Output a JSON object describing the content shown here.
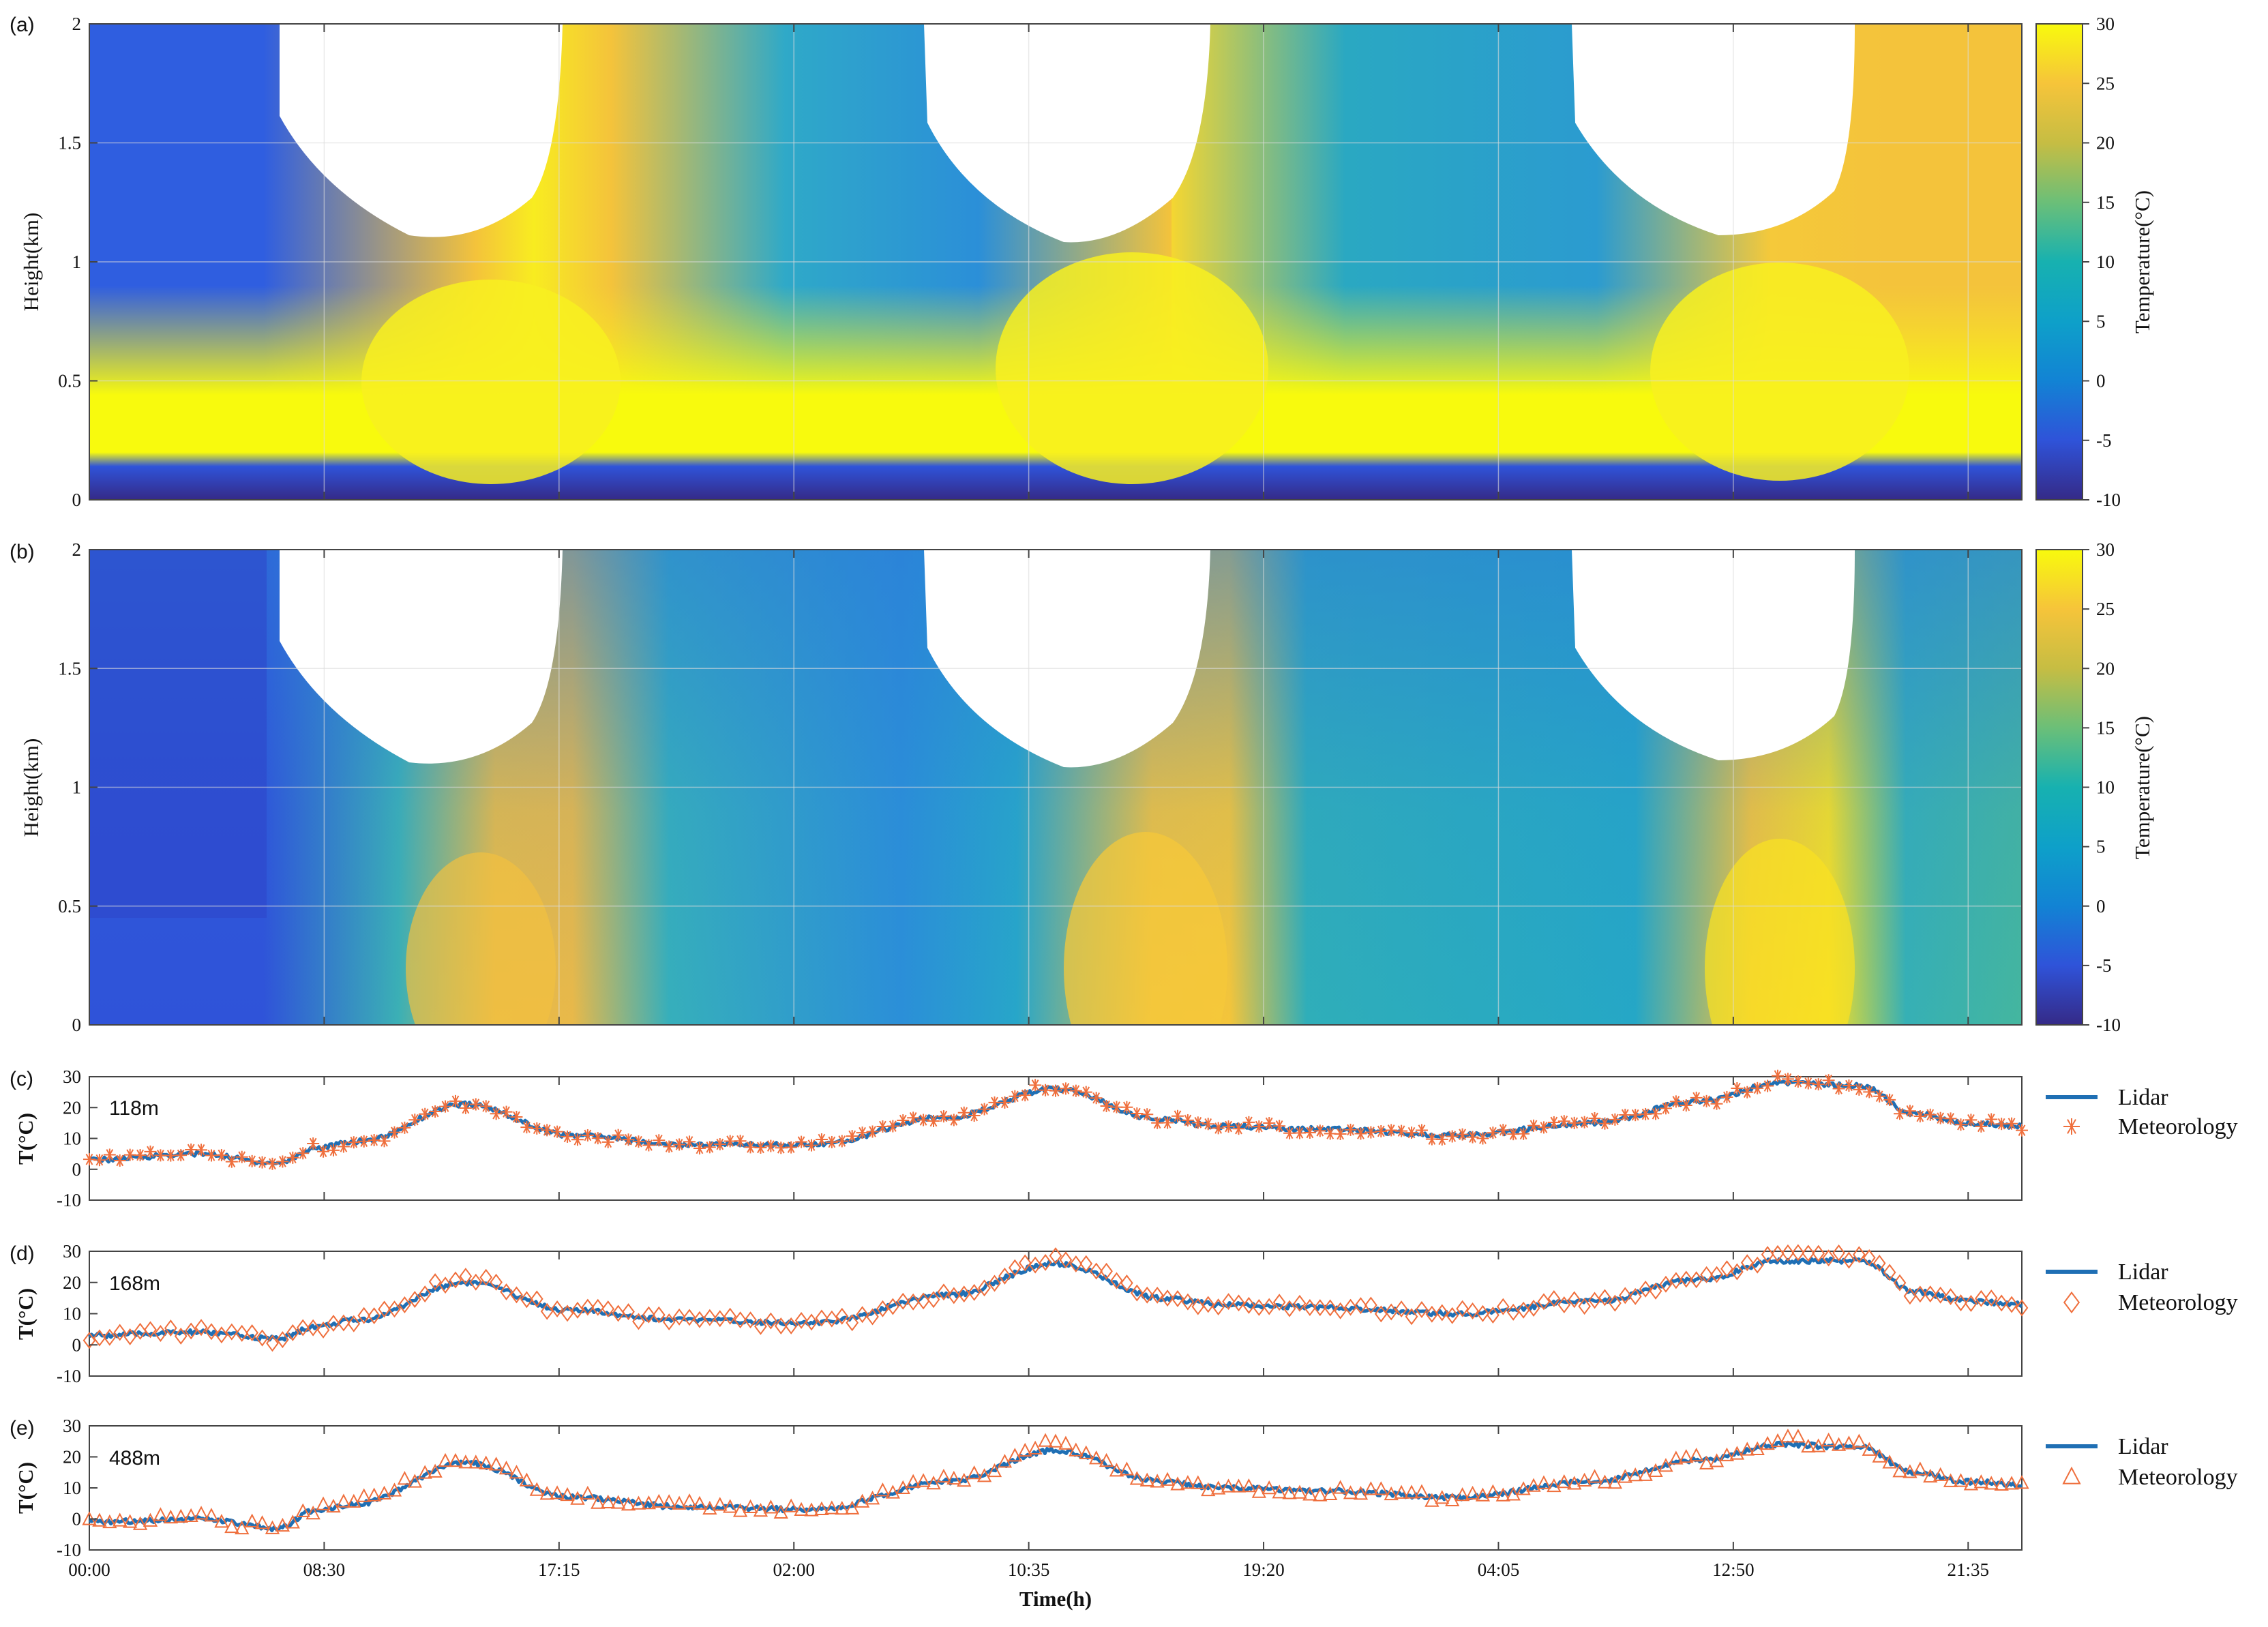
{
  "chart_data": [
    {
      "panel": "(a)",
      "type": "heatmap",
      "ylabel": "Height(km)",
      "ylim": [
        0,
        2
      ],
      "yticks": [
        "0",
        "0.5",
        "1",
        "1.5",
        "2"
      ],
      "colorbar": {
        "label": "Temperature(°C)",
        "range": [
          -10,
          30
        ],
        "ticks": [
          "-10",
          "-5",
          "0",
          "5",
          "10",
          "15",
          "20",
          "25",
          "30"
        ],
        "colormap": "parula"
      },
      "grid": true,
      "description_values": {
        "days": 3,
        "surface_layer": "warm band near 0.1-0.3 km (~30 °C) over a cold layer below 0.1 km (~-10 °C)",
        "daytime_peak_height_km": [
          0.8,
          0.95,
          0.85
        ],
        "blank_region_tops_km": [
          1.1,
          1.05,
          1.05
        ]
      }
    },
    {
      "panel": "(b)",
      "type": "heatmap",
      "ylabel": "Height(km)",
      "ylim": [
        0,
        2
      ],
      "yticks": [
        "0",
        "0.5",
        "1",
        "1.5",
        "2"
      ],
      "colorbar": {
        "label": "Temperature(°C)",
        "range": [
          -10,
          30
        ],
        "ticks": [
          "-10",
          "-5",
          "0",
          "5",
          "10",
          "15",
          "20",
          "25",
          "30"
        ],
        "colormap": "parula"
      },
      "grid": true
    },
    {
      "panel": "(c)",
      "type": "line",
      "annotation": "118m",
      "ylabel": "T(°C)",
      "ylim": [
        -10,
        30
      ],
      "yticks": [
        "-10",
        "0",
        "10",
        "20",
        "30"
      ],
      "legend": "right",
      "marker": "asterisk",
      "x_hours": [
        0,
        4,
        7,
        8.5,
        10,
        14,
        18,
        22,
        27,
        32,
        36,
        40,
        42,
        46,
        51,
        56,
        60,
        63,
        66,
        68,
        70,
        72
      ],
      "series": [
        {
          "name": "Lidar",
          "values": [
            3,
            5,
            2,
            7,
            9,
            21,
            11,
            8,
            8,
            17,
            26,
            16,
            14,
            13,
            11,
            15,
            22,
            28,
            27,
            18,
            15,
            14
          ]
        },
        {
          "name": "Meteorology",
          "values": [
            3,
            5,
            2,
            7,
            9,
            21,
            11,
            8,
            8,
            17,
            27,
            16,
            14,
            13,
            11,
            15,
            22,
            29,
            27,
            18,
            15,
            14
          ]
        }
      ]
    },
    {
      "panel": "(d)",
      "type": "line",
      "annotation": "168m",
      "ylabel": "T(°C)",
      "ylim": [
        -10,
        30
      ],
      "yticks": [
        "-10",
        "0",
        "10",
        "20",
        "30"
      ],
      "legend": "right",
      "marker": "diamond",
      "x_hours": [
        0,
        4,
        7,
        8.5,
        10,
        14,
        18,
        22,
        27,
        32,
        36,
        40,
        42,
        46,
        51,
        56,
        60,
        63,
        66,
        68,
        70,
        72
      ],
      "series": [
        {
          "name": "Lidar",
          "values": [
            3,
            4,
            2,
            6,
            8,
            20,
            11,
            8,
            7,
            16,
            26,
            15,
            13,
            12,
            10,
            14,
            21,
            27,
            27,
            17,
            14,
            13
          ]
        },
        {
          "name": "Meteorology",
          "values": [
            3,
            4,
            2,
            6,
            8,
            21,
            11,
            8,
            7,
            16,
            28,
            15,
            13,
            12,
            10,
            14,
            21,
            28,
            28,
            17,
            14,
            13
          ]
        }
      ]
    },
    {
      "panel": "(e)",
      "type": "line",
      "annotation": "488m",
      "ylabel": "T(°C)",
      "xlabel": "Time(h)",
      "ylim": [
        -10,
        30
      ],
      "yticks": [
        "-10",
        "0",
        "10",
        "20",
        "30"
      ],
      "xticks": [
        "00:00",
        "08:30",
        "17:15",
        "02:00",
        "10:35",
        "19:20",
        "04:05",
        "12:50",
        "21:35"
      ],
      "legend": "right",
      "marker": "triangle",
      "x_hours": [
        0,
        4,
        7,
        8.5,
        10,
        14,
        18,
        22,
        27,
        32,
        36,
        40,
        42,
        46,
        51,
        56,
        60,
        63,
        66,
        68,
        70,
        72
      ],
      "series": [
        {
          "name": "Lidar",
          "values": [
            -1,
            0,
            -3,
            3,
            5,
            18,
            7,
            4,
            3,
            12,
            22,
            12,
            10,
            9,
            7,
            12,
            19,
            24,
            23,
            15,
            12,
            11
          ]
        },
        {
          "name": "Meteorology",
          "values": [
            -1,
            0,
            -3,
            3,
            6,
            19,
            7,
            4,
            3,
            12,
            24,
            12,
            10,
            9,
            7,
            12,
            19,
            25,
            24,
            15,
            12,
            11
          ]
        }
      ]
    }
  ],
  "labels": {
    "panel_a": "(a)",
    "panel_b": "(b)",
    "panel_c": "(c)",
    "panel_d": "(d)",
    "panel_e": "(e)",
    "height_label": "Height(km)",
    "cbar_label": "Temperature(°C)",
    "t_label": "T(°C)",
    "time_label": "Time(h)",
    "lidar": "Lidar",
    "meteorology": "Meteorology",
    "h118": "118m",
    "h168": "168m",
    "h488": "488m"
  },
  "colors": {
    "lidar": "#1f6fb4",
    "meteorology": "#ef6f3d",
    "grid": "#dcdcdc"
  }
}
